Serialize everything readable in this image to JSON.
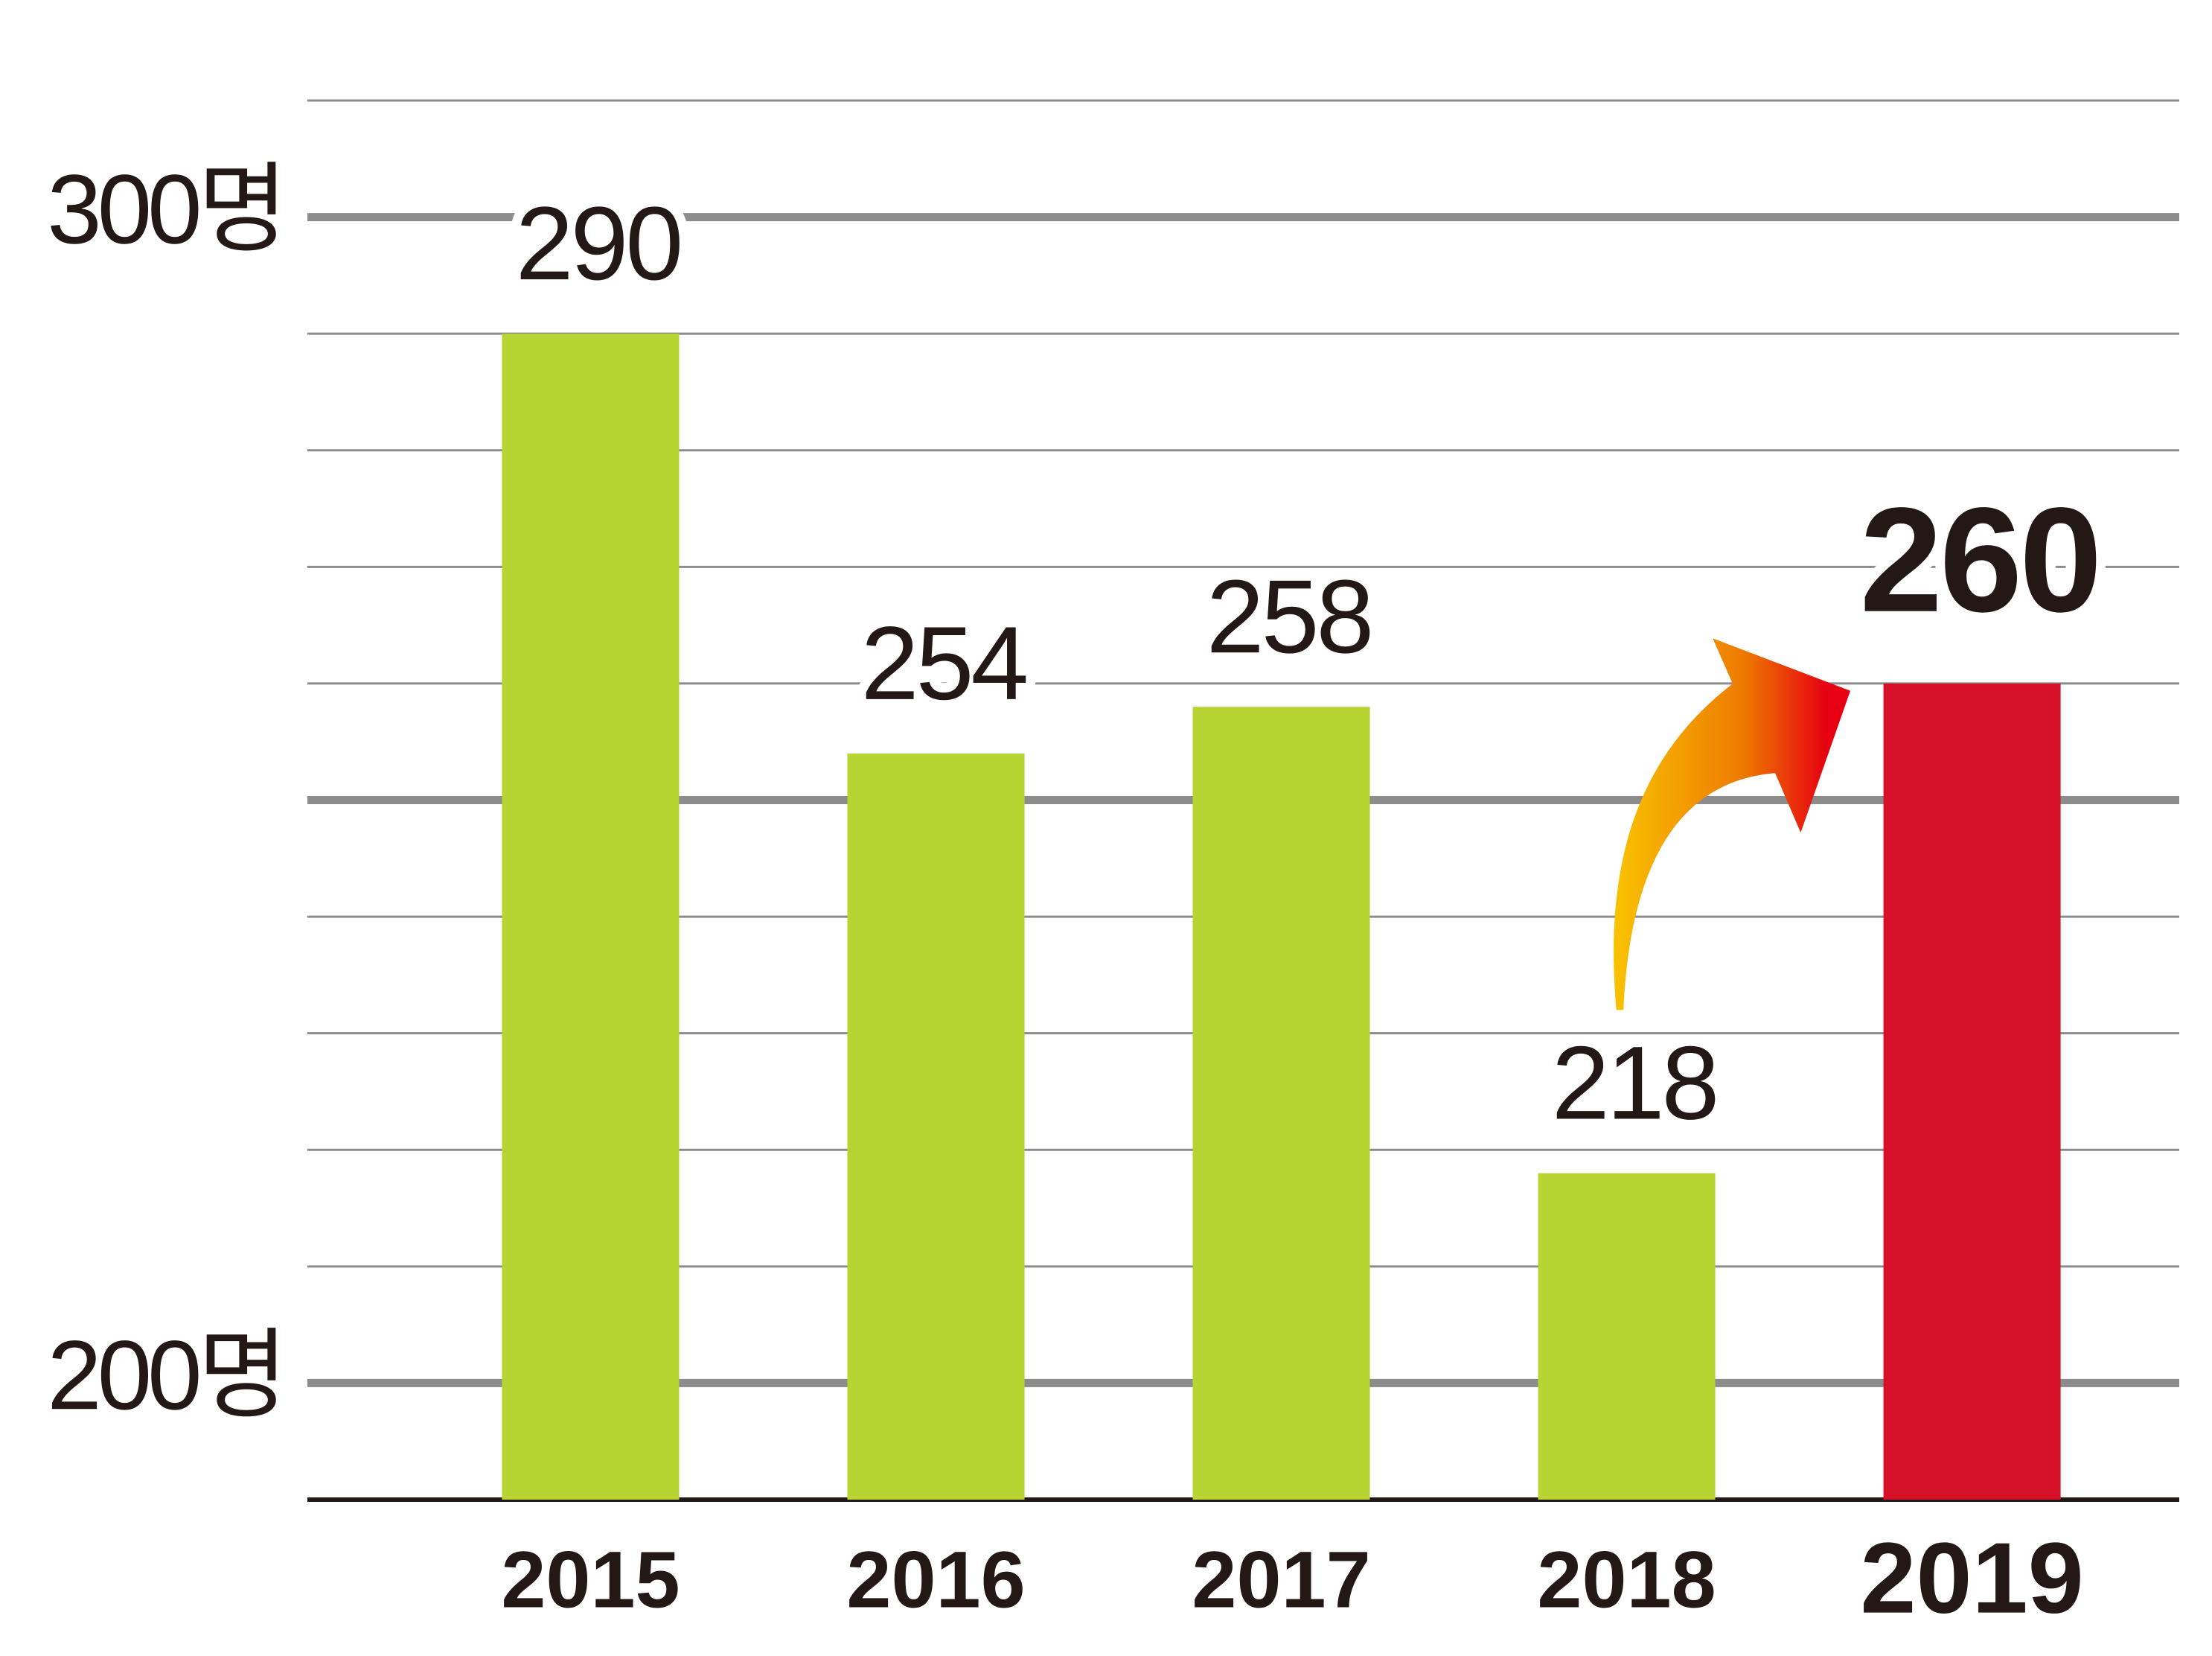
{
  "chart_data": {
    "type": "bar",
    "categories": [
      "2015",
      "2016",
      "2017",
      "2018",
      "2019"
    ],
    "values": [
      290,
      254,
      258,
      218,
      260
    ],
    "colors": [
      "#b8d433",
      "#b8d433",
      "#b8d433",
      "#b8d433",
      "#d7102a"
    ],
    "ylim": [
      190,
      310
    ],
    "yticks": [
      {
        "value": 200,
        "label": "200명"
      },
      {
        "value": 300,
        "label": "300명"
      }
    ],
    "grid_major": [
      200,
      250,
      300
    ],
    "grid_minor": [
      210,
      220,
      230,
      240,
      260,
      270,
      280,
      290,
      310
    ],
    "grid": true
  }
}
